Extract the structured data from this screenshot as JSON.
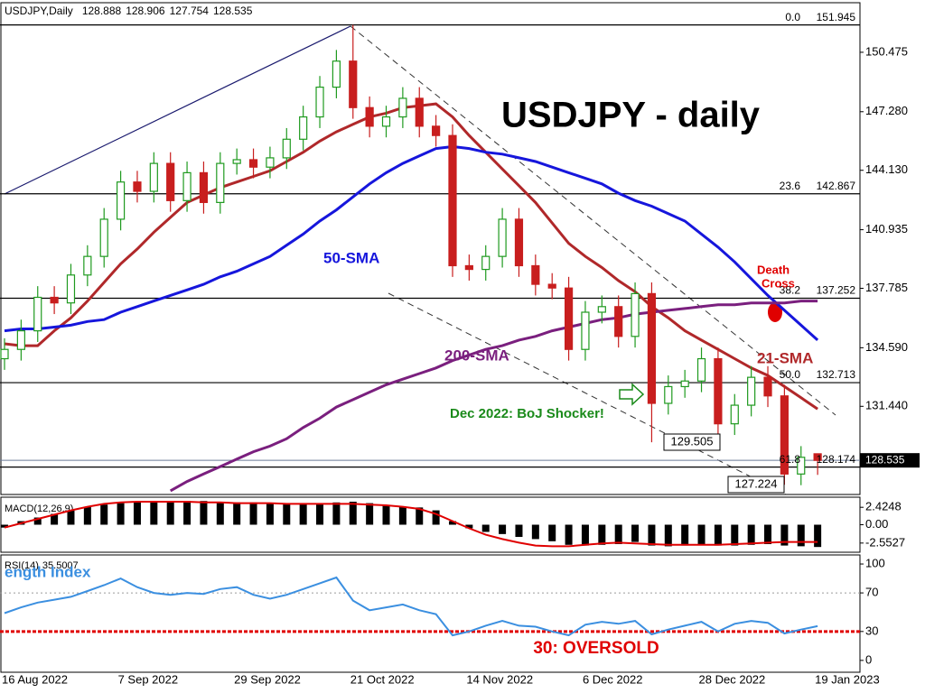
{
  "chart_data": [
    {
      "type": "candlestick",
      "title": "USDJPY - daily",
      "symbol": "USDJPY,Daily",
      "categories": [
        "16 Aug 2022",
        null,
        null,
        null,
        null,
        null,
        null,
        "7 Sep 2022",
        null,
        null,
        null,
        null,
        null,
        null,
        "29 Sep 2022",
        null,
        null,
        null,
        null,
        null,
        null,
        "21 Oct 2022",
        null,
        null,
        null,
        null,
        null,
        null,
        "14 Nov 2022",
        null,
        null,
        null,
        null,
        null,
        null,
        "6 Dec 2022",
        null,
        null,
        null,
        null,
        null,
        null,
        "28 Dec 2022",
        null,
        null,
        null,
        null,
        null,
        null,
        "19 Jan 2023"
      ],
      "open": [
        134.0,
        134.5,
        135.5,
        137.3,
        137.0,
        138.5,
        139.5,
        141.5,
        143.5,
        143.0,
        144.5,
        142.5,
        144.0,
        142.4,
        144.5,
        144.7,
        144.3,
        144.8,
        145.8,
        147.0,
        148.6,
        150.0,
        147.5,
        146.5,
        147.0,
        148.0,
        146.5,
        146.0,
        139.0,
        138.8,
        139.5,
        141.5,
        139.0,
        138.0,
        137.8,
        134.5,
        136.5,
        136.8,
        135.2,
        137.5,
        131.6,
        132.5,
        132.8,
        134.0,
        130.5,
        131.5,
        133.0,
        132.0,
        127.8,
        128.888
      ],
      "high": [
        135.1,
        136.1,
        137.9,
        137.9,
        139.1,
        140.1,
        142.1,
        144.1,
        144.1,
        145.1,
        145.1,
        144.6,
        144.6,
        145.1,
        145.3,
        145.3,
        145.4,
        146.4,
        147.6,
        149.2,
        150.6,
        151.945,
        148.1,
        147.6,
        148.6,
        148.6,
        147.1,
        146.6,
        139.6,
        140.1,
        142.1,
        142.1,
        139.6,
        138.6,
        138.4,
        137.1,
        137.4,
        137.4,
        138.1,
        138.1,
        133.1,
        133.4,
        134.6,
        134.6,
        132.1,
        133.6,
        133.6,
        132.6,
        129.3,
        128.906
      ],
      "low": [
        133.4,
        133.9,
        134.9,
        136.4,
        136.4,
        137.9,
        138.9,
        140.9,
        142.4,
        142.4,
        141.9,
        141.9,
        141.8,
        141.8,
        143.9,
        143.7,
        143.7,
        144.2,
        145.2,
        146.4,
        148.0,
        146.9,
        145.9,
        145.9,
        146.4,
        145.9,
        145.4,
        138.4,
        138.2,
        138.2,
        138.9,
        138.4,
        137.4,
        137.2,
        133.9,
        133.9,
        135.9,
        134.6,
        134.6,
        129.505,
        131.0,
        131.9,
        132.2,
        129.9,
        129.9,
        130.9,
        131.4,
        127.224,
        127.2,
        127.754
      ],
      "close": [
        134.5,
        135.5,
        137.3,
        137.0,
        138.5,
        139.5,
        141.5,
        143.5,
        143.0,
        144.5,
        142.5,
        144.0,
        142.4,
        144.5,
        144.7,
        144.3,
        144.8,
        145.8,
        147.0,
        148.6,
        150.0,
        147.5,
        146.5,
        147.0,
        148.0,
        146.5,
        146.0,
        139.0,
        138.8,
        139.5,
        141.5,
        139.0,
        138.0,
        137.8,
        134.5,
        136.5,
        136.8,
        135.2,
        137.5,
        131.6,
        132.5,
        132.8,
        134.0,
        130.5,
        131.5,
        133.0,
        132.0,
        127.8,
        128.7,
        128.535
      ],
      "up_color": "#1f9a1f",
      "down_color": "#c81e1e",
      "series": [
        {
          "name": "21-SMA",
          "color": "#b0282a",
          "values": [
            134.8,
            134.7,
            134.7,
            135.5,
            136.2,
            137.1,
            138.1,
            139.1,
            139.9,
            140.8,
            141.6,
            142.4,
            142.8,
            143.2,
            143.5,
            143.8,
            144.1,
            144.6,
            145.1,
            145.7,
            146.2,
            146.6,
            147.0,
            147.2,
            147.5,
            147.6,
            147.7,
            147.0,
            146.0,
            145.1,
            144.2,
            143.3,
            142.4,
            141.3,
            140.2,
            139.5,
            138.9,
            138.2,
            137.6,
            136.8,
            136.2,
            135.5,
            135.0,
            134.5,
            134.0,
            133.5,
            133.1,
            132.5,
            131.9,
            131.3
          ]
        },
        {
          "name": "50-SMA",
          "color": "#1616dc",
          "values": [
            135.5,
            135.6,
            135.6,
            135.7,
            135.8,
            136.0,
            136.1,
            136.5,
            136.8,
            137.1,
            137.4,
            137.7,
            138.0,
            138.4,
            138.7,
            139.1,
            139.5,
            140.1,
            140.7,
            141.4,
            142.0,
            142.7,
            143.4,
            144.0,
            144.5,
            144.9,
            145.3,
            145.4,
            145.3,
            145.1,
            145.0,
            144.8,
            144.6,
            144.3,
            144.0,
            143.7,
            143.4,
            142.9,
            142.5,
            142.2,
            141.8,
            141.4,
            140.7,
            140.0,
            139.2,
            138.3,
            137.4,
            136.6,
            135.8,
            135.0
          ]
        },
        {
          "name": "200-SMA",
          "color": "#7a1f7e",
          "values": [
            null,
            null,
            null,
            null,
            null,
            null,
            null,
            null,
            null,
            null,
            126.9,
            127.4,
            127.8,
            128.2,
            128.6,
            129.0,
            129.3,
            129.7,
            130.3,
            130.8,
            131.4,
            131.8,
            132.2,
            132.6,
            132.9,
            133.2,
            133.5,
            133.9,
            134.2,
            134.5,
            134.7,
            135.0,
            135.2,
            135.5,
            135.7,
            135.9,
            136.1,
            136.2,
            136.4,
            136.5,
            136.6,
            136.7,
            136.8,
            136.9,
            136.9,
            137.0,
            137.0,
            137.0,
            137.1,
            137.1
          ]
        }
      ],
      "ylim": [
        126.7,
        153.14
      ],
      "yticks": [
        150.475,
        {
          "value": 147.28,
          "label": "147.280"
        },
        {
          "value": 144.13,
          "label": "144.130"
        },
        140.935,
        137.785,
        {
          "value": 134.59,
          "label": "134.590"
        },
        {
          "value": 131.44,
          "label": "131.440"
        }
      ],
      "fib_levels": [
        {
          "level": "0.0",
          "value": 151.945
        },
        {
          "level": "23.6",
          "value": 142.867
        },
        {
          "level": "38.2",
          "value": 137.252
        },
        {
          "level": "50.0",
          "value": 132.713
        },
        {
          "level": "61.8",
          "value": 128.174
        }
      ],
      "annotations": [
        {
          "text": "50-SMA",
          "color": "#1616dc"
        },
        {
          "text": "200-SMA",
          "color": "#7a1f7e"
        },
        {
          "text": "21-SMA",
          "color": "#b0282a"
        },
        {
          "text": "Death",
          "color": "#e00000"
        },
        {
          "text": "Cross",
          "color": "#e00000"
        },
        {
          "text": "Dec 2022: BoJ Shocker!",
          "color": "#1a8a1a"
        }
      ]
    },
    {
      "type": "macd",
      "title": "MACD(12,26,9)",
      "color": "#000000",
      "values": [
        -0.4,
        0.5,
        1.0,
        1.5,
        2.0,
        2.5,
        2.8,
        3.0,
        3.2,
        3.3,
        3.3,
        3.3,
        3.3,
        3.2,
        3.1,
        3.1,
        3.0,
        3.0,
        3.0,
        3.0,
        3.1,
        3.2,
        3.0,
        2.7,
        2.5,
        2.4,
        2.0,
        0.5,
        -0.5,
        -1.0,
        -1.3,
        -1.7,
        -2.0,
        -2.3,
        -2.8,
        -2.9,
        -2.8,
        -2.7,
        -2.4,
        -2.9,
        -3.0,
        -2.9,
        -2.7,
        -2.9,
        -2.9,
        -2.8,
        -2.7,
        -2.9,
        -3.0,
        -3.1
      ],
      "signal": {
        "color": "#e00000",
        "values": [
          -0.4,
          0.2,
          0.8,
          1.4,
          2.0,
          2.5,
          2.9,
          3.1,
          3.2,
          3.2,
          3.2,
          3.2,
          3.1,
          3.1,
          3.0,
          3.0,
          3.0,
          2.9,
          2.9,
          2.9,
          2.9,
          2.9,
          2.8,
          2.7,
          2.5,
          2.2,
          1.5,
          0.5,
          -0.5,
          -1.4,
          -2.0,
          -2.5,
          -2.9,
          -3.0,
          -3.0,
          -2.8,
          -2.6,
          -2.5,
          -2.6,
          -2.7,
          -2.8,
          -2.8,
          -2.8,
          -2.8,
          -2.7,
          -2.6,
          -2.5,
          -2.4,
          -2.4,
          -2.4
        ]
      },
      "ylim": [
        -3.83,
        3.83
      ],
      "yticks": [
        2.4248,
        {
          "value": 0,
          "label": "0.00"
        },
        -2.5527
      ]
    },
    {
      "type": "line",
      "title": "RSI(14)",
      "subtitle": "ength Index",
      "series": [
        {
          "color": "#3b8fe0",
          "values": [
            49,
            55,
            60,
            63,
            66,
            72,
            78,
            85,
            76,
            70,
            68,
            70,
            69,
            74,
            76,
            68,
            64,
            68,
            74,
            80,
            86,
            62,
            52,
            55,
            58,
            52,
            48,
            26,
            30,
            36,
            41,
            36,
            35,
            30,
            26,
            37,
            40,
            38,
            41,
            27,
            32,
            36,
            40,
            30,
            38,
            41,
            39,
            28,
            32,
            35.5007
          ]
        }
      ],
      "levels": [
        {
          "value": 70,
          "color": "#9a9a9a"
        },
        {
          "value": 30,
          "color": "#e00000"
        }
      ],
      "annotation": {
        "text": "30: OVERSOLD",
        "color": "#e00000"
      },
      "ylim": [
        -12.3,
        109.4
      ],
      "yticks": [
        100,
        70,
        30,
        0
      ]
    }
  ]
}
